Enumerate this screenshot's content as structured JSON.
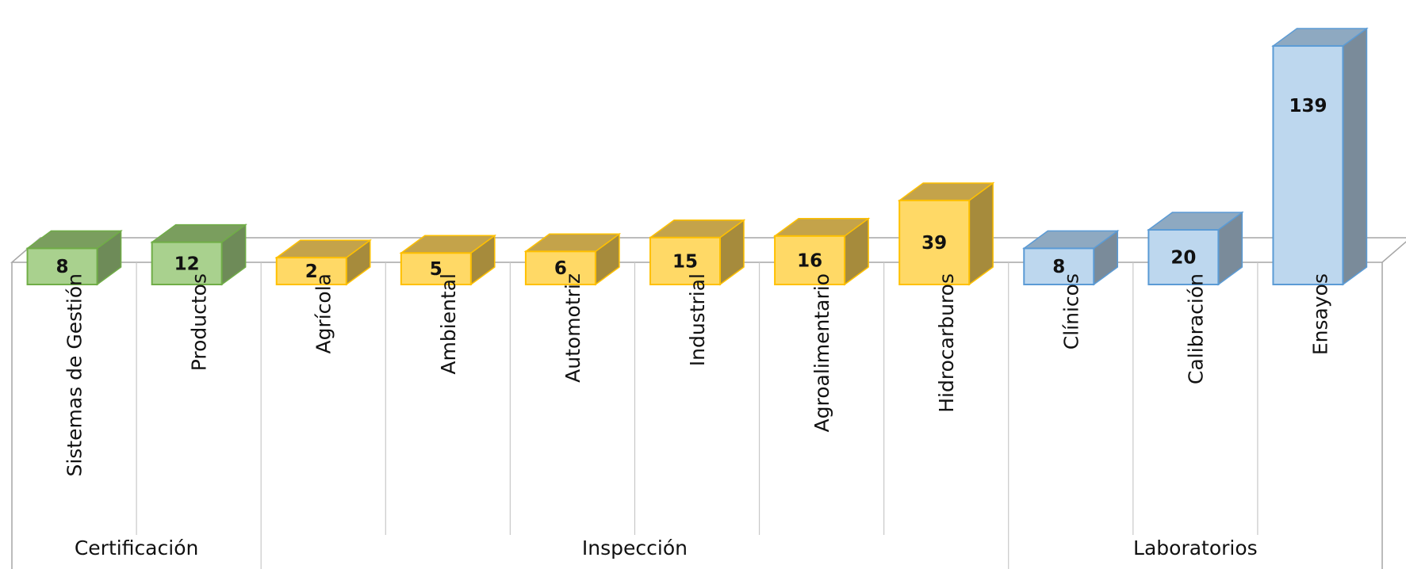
{
  "chart_data": {
    "type": "bar",
    "style": "3d-column",
    "categories": [
      "Sistemas de Gestión",
      "Productos",
      "Agrícola",
      "Ambiental",
      "Automotriz",
      "Industrial",
      "Agroalimentario",
      "Hidrocarburos",
      "Clínicos",
      "Calibración",
      "Ensayos"
    ],
    "values": [
      8,
      12,
      2,
      5,
      6,
      15,
      16,
      39,
      8,
      20,
      139
    ],
    "groups": [
      {
        "label": "Certificación",
        "count": 2,
        "color": "#A9D18E",
        "side_color": "#6E8B58",
        "top_color": "#7A9E5E",
        "stroke": "#70AD47"
      },
      {
        "label": "Inspección",
        "count": 6,
        "color": "#FFD966",
        "side_color": "#A68B3C",
        "top_color": "#C4A34A",
        "stroke": "#FFC000"
      },
      {
        "label": "Laboratorios",
        "count": 3,
        "color": "#BDD7EE",
        "side_color": "#7A8B9A",
        "top_color": "#8EA9C1",
        "stroke": "#5B9BD5"
      }
    ],
    "title": "",
    "xlabel": "",
    "ylabel": "",
    "legend": "none",
    "grid": false
  }
}
